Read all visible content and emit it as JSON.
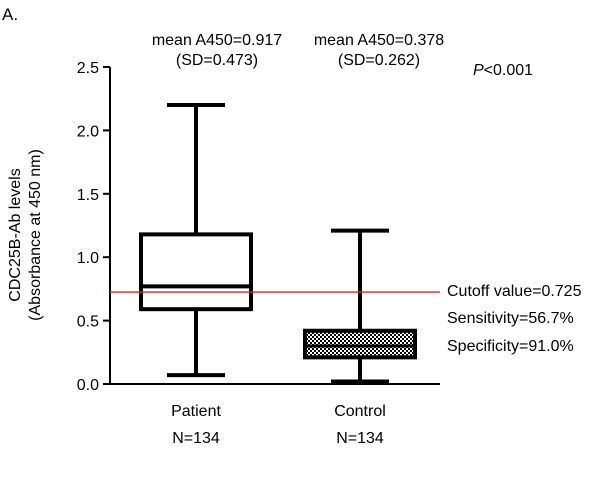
{
  "panel_label": "A.",
  "chart_data": {
    "type": "boxplot",
    "ylabel_line1": "CDC25B-Ab levels",
    "ylabel_line2": "(Absorbance at 450 nm)",
    "ylim": [
      0,
      2.5
    ],
    "yticks": [
      "0.0",
      "0.5",
      "1.0",
      "1.5",
      "2.0",
      "2.5"
    ],
    "ytick_values": [
      0,
      0.5,
      1.0,
      1.5,
      2.0,
      2.5
    ],
    "groups": [
      {
        "name": "Patient",
        "n_label": "N=134",
        "mean_label": "mean A450=0.917",
        "sd_label": "(SD=0.473)",
        "min": 0.07,
        "q1": 0.59,
        "median": 0.77,
        "q3": 1.18,
        "max": 2.2,
        "fill": "none"
      },
      {
        "name": "Control",
        "n_label": "N=134",
        "mean_label": "mean A450=0.378",
        "sd_label": "(SD=0.262)",
        "min": 0.02,
        "q1": 0.21,
        "median": 0.3,
        "q3": 0.42,
        "max": 1.21,
        "fill": "checkered"
      }
    ],
    "p_value_italic": "P",
    "p_value_rest": "<0.001",
    "cutoff": {
      "value": 0.725,
      "color": "#e0261e",
      "label": "Cutoff value=0.725"
    },
    "annotations": [
      "Sensitivity=56.7%",
      "Specificity=91.0%"
    ]
  }
}
